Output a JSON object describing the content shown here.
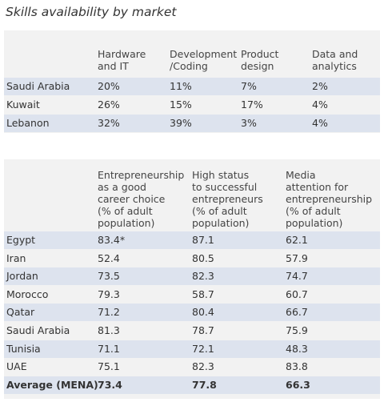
{
  "title": "Skills availability by market",
  "table1": {
    "headers": [
      "Hardware and IT",
      "Development /Coding",
      "Product design",
      "Data and analytics"
    ],
    "header_lines": [
      [
        "Hardware",
        "and IT"
      ],
      [
        "Development",
        "/Coding"
      ],
      [
        "Product",
        "design"
      ],
      [
        "Data and",
        "analytics"
      ]
    ],
    "rows": [
      {
        "label": "Saudi Arabia",
        "values": [
          "20%",
          "11%",
          "7%",
          "2%"
        ]
      },
      {
        "label": "Kuwait",
        "values": [
          "26%",
          "15%",
          "17%",
          "4%"
        ]
      },
      {
        "label": "Lebanon",
        "values": [
          "32%",
          "39%",
          "3%",
          "4%"
        ]
      }
    ]
  },
  "table2": {
    "headers": [
      "Entrepreneurship as a good career choice (% of adult population)",
      "High status to successful entrepreneurs (% of adult population)",
      "Media attention for entrepreneurship (% of adult population)"
    ],
    "header_lines": [
      [
        "Entrepreneurship",
        "as a good",
        "career choice",
        "(% of adult",
        "population)"
      ],
      [
        "High status",
        "to successful",
        "entrepreneurs",
        "(% of adult",
        "population)"
      ],
      [
        "Media",
        "attention for",
        "entrepreneurship",
        "(% of adult",
        "population)"
      ]
    ],
    "rows": [
      {
        "label": "Egypt",
        "values": [
          "83.4*",
          "87.1",
          "62.1"
        ]
      },
      {
        "label": "Iran",
        "values": [
          "52.4",
          "80.5",
          "57.9"
        ]
      },
      {
        "label": "Jordan",
        "values": [
          "73.5",
          "82.3",
          "74.7"
        ]
      },
      {
        "label": "Morocco",
        "values": [
          "79.3",
          "58.7",
          "60.7"
        ]
      },
      {
        "label": "Qatar",
        "values": [
          "71.2",
          "80.4",
          "66.7"
        ]
      },
      {
        "label": "Saudi Arabia",
        "values": [
          "81.3",
          "78.7",
          "75.9"
        ]
      },
      {
        "label": "Tunisia",
        "values": [
          "71.1",
          "72.1",
          "48.3"
        ]
      },
      {
        "label": "UAE",
        "values": [
          "75.1",
          "82.3",
          "83.8"
        ]
      },
      {
        "label": "Average (MENA)",
        "values": [
          "73.4",
          "77.8",
          "66.3"
        ]
      }
    ]
  },
  "colors": {
    "panel": "#f2f2f2",
    "row_highlight": "#dde3ee",
    "text": "#333333"
  }
}
